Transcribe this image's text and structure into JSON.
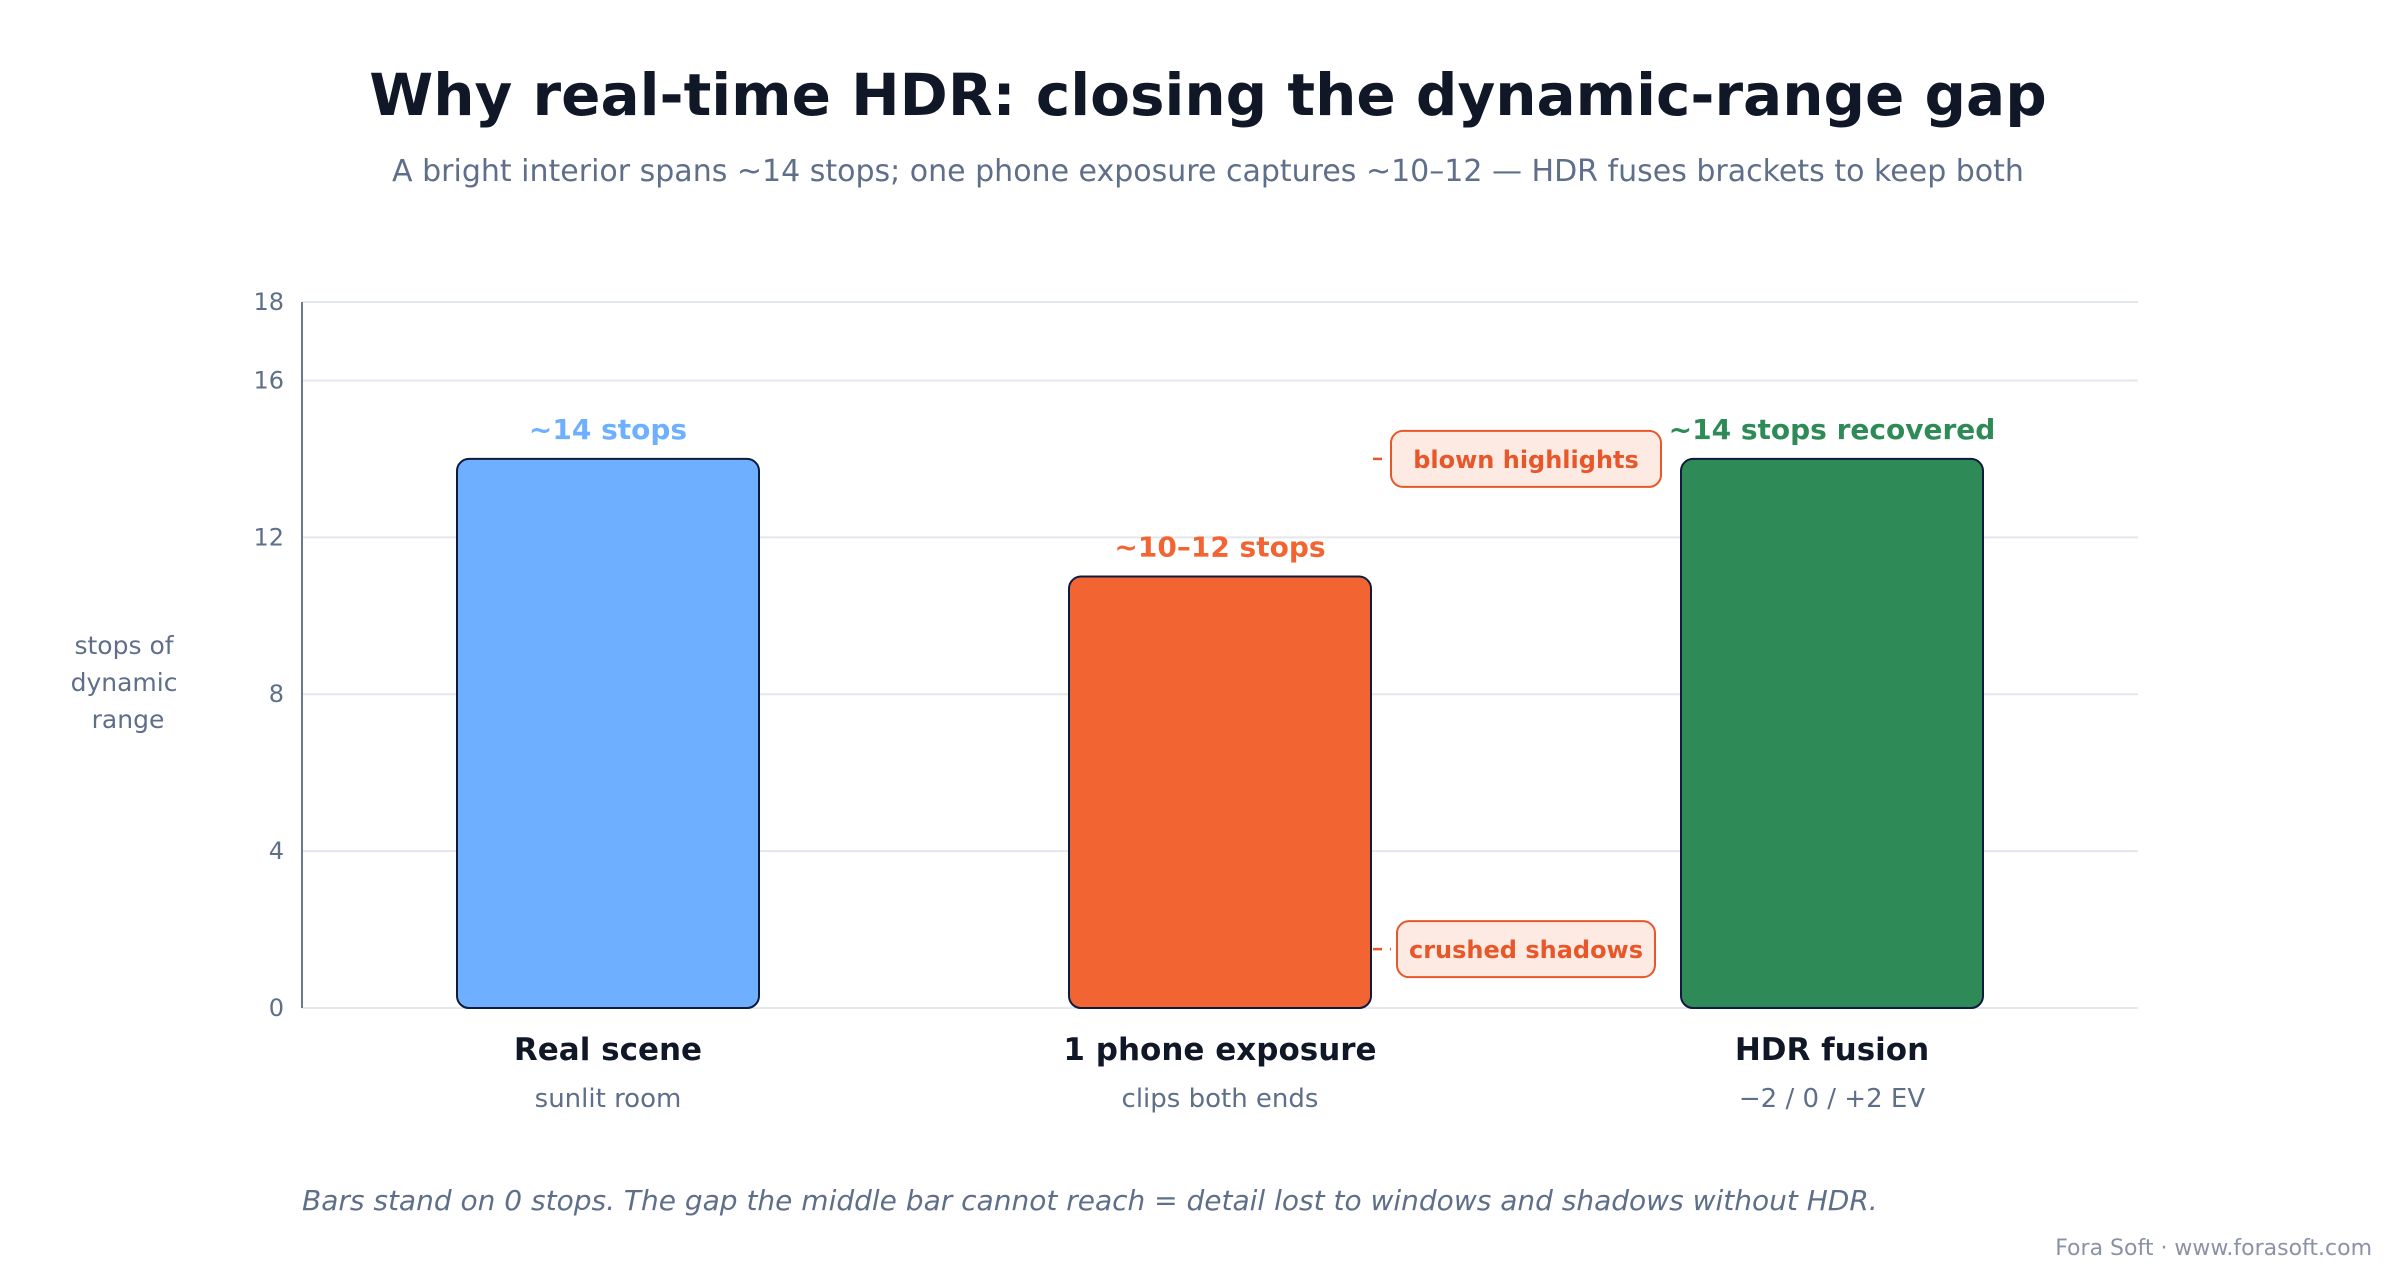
{
  "title": "Why real-time HDR: closing the dynamic-range gap",
  "subtitle": "A bright interior spans ~14 stops; one phone exposure captures ~10–12 — HDR fuses brackets to keep both",
  "footnote": "Bars stand on 0 stops. The gap the middle bar cannot reach = detail lost to windows and shadows without HDR.",
  "credit": "Fora Soft · www.forasoft.com",
  "chart_data": {
    "type": "bar",
    "title": "Why real-time HDR: closing the dynamic-range gap",
    "subtitle": "A bright interior spans ~14 stops; one phone exposure captures ~10–12 — HDR fuses brackets to keep both",
    "ylabel_lines": [
      "stops of",
      "dynamic",
      "range"
    ],
    "xlabel": "",
    "ylim": [
      0,
      18
    ],
    "yticks": [
      0,
      4,
      8,
      12,
      16,
      18
    ],
    "grid": true,
    "categories": [
      "Real scene",
      "1 phone exposure",
      "HDR fusion"
    ],
    "category_sublabels": [
      "sunlit room",
      "clips both ends",
      "−2 / 0 / +2 EV"
    ],
    "values": [
      14,
      11,
      14
    ],
    "value_labels": [
      "~14 stops",
      "~10–12 stops",
      "~14 stops recovered"
    ],
    "colors": [
      "#6eb0ff",
      "#f26533",
      "#2e8b57"
    ],
    "label_colors": [
      "#6eb0ff",
      "#f26533",
      "#2e8b57"
    ],
    "annotations": [
      {
        "text": "blown highlights",
        "y": 14
      },
      {
        "text": "crushed shadows",
        "y": 1.5
      }
    ]
  }
}
